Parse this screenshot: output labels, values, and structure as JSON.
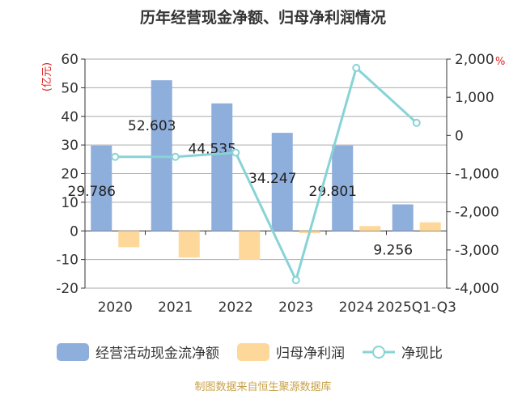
{
  "chart_data": {
    "type": "bar+line",
    "title": "历年经营现金净额、归母净利润情况",
    "categories": [
      "2020",
      "2021",
      "2022",
      "2023",
      "2024",
      "2025Q1-Q3"
    ],
    "y_left": {
      "label": "亿元",
      "range": [
        -20,
        60
      ],
      "ticks": [
        "60",
        "50",
        "40",
        "30",
        "20",
        "10",
        "0",
        "-10",
        "-20"
      ]
    },
    "y_right": {
      "label": "%",
      "range": [
        -4000,
        2000
      ],
      "ticks": [
        "2,000",
        "1,000",
        "0",
        "-1,000",
        "-2,000",
        "-3,000",
        "-4,000"
      ]
    },
    "series": [
      {
        "name": "经营活动现金流净额",
        "type": "bar",
        "axis": "left",
        "color": "#8eaedc",
        "values": [
          29.786,
          52.603,
          44.535,
          34.247,
          29.801,
          9.256
        ],
        "labels": [
          "29.786",
          "52.603",
          "44.535",
          "34.247",
          "29.801",
          "9.256"
        ]
      },
      {
        "name": "归母净利润",
        "type": "bar",
        "axis": "left",
        "color": "#fdd89a",
        "values": [
          -5.7,
          -9.3,
          -10.1,
          -0.8,
          1.7,
          3.0
        ]
      },
      {
        "name": "净现比",
        "type": "line",
        "axis": "right",
        "color": "#88d3d6",
        "values": [
          -560,
          -560,
          -450,
          -3790,
          1770,
          330
        ]
      }
    ],
    "grid": true,
    "legend": "bottom"
  },
  "footer": "制图数据来自恒生聚源数据库"
}
